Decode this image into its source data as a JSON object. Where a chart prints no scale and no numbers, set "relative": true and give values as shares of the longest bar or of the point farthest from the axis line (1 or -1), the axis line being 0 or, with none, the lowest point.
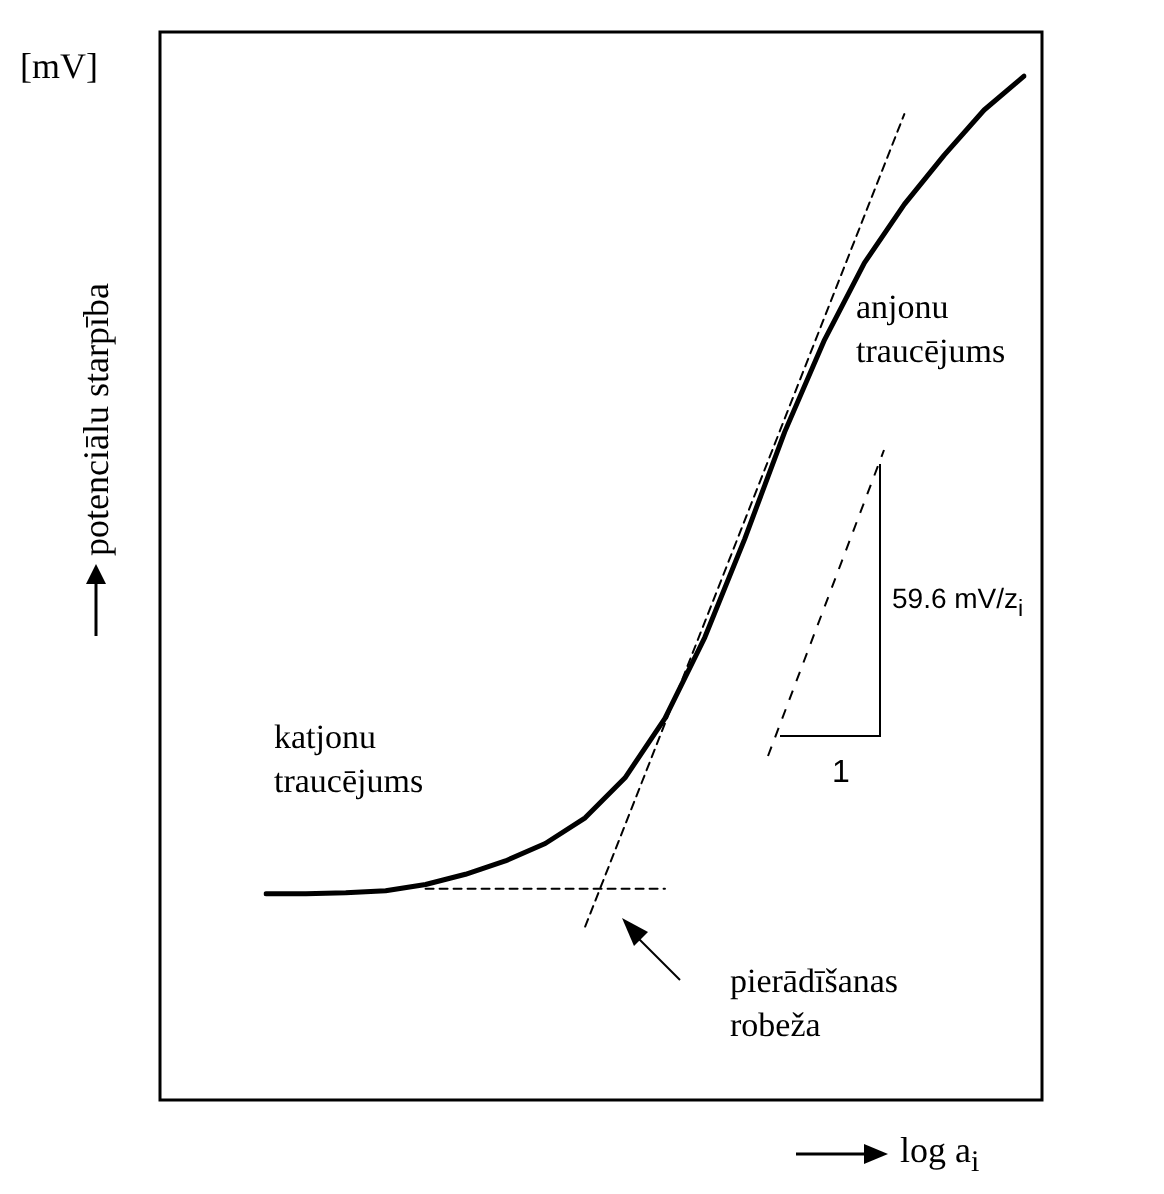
{
  "chart_data": {
    "type": "line",
    "relative": true,
    "xlabel": "log a$_{i}$",
    "ylabel": "potenciālu starpība",
    "legend": false,
    "marker": "none",
    "annotations": [
      "[mV]",
      "katjonu\ntraucējums",
      "anjonu\ntraucējums",
      "59.6 mV/z$_{i}$",
      "1",
      "pierādīšanas\nrobeža"
    ],
    "categories": [
      null,
      null,
      null,
      null,
      null,
      null,
      null,
      null,
      null,
      null,
      null,
      null,
      null,
      null,
      null,
      null,
      null,
      null,
      null,
      null
    ],
    "series": [
      {
        "color": "#000000",
        "line_style": "solid",
        "values": [
          0.203,
          0.203,
          0.204,
          0.206,
          0.212,
          0.222,
          0.235,
          0.252,
          0.277,
          0.316,
          0.374,
          0.453,
          0.549,
          0.653,
          0.743,
          0.818,
          0.875,
          0.923,
          0.967,
          1
        ]
      },
      {
        "color": "#000000",
        "line_style": "dashed",
        "values": [
          null,
          null,
          null,
          null,
          null,
          null,
          null,
          null,
          0.171,
          0.27,
          0.369,
          0.468,
          0.567,
          0.666,
          0.765,
          0.864,
          0.963,
          null,
          null,
          null
        ]
      },
      {
        "color": "#000000",
        "line_style": "dashed",
        "values": [
          null,
          null,
          null,
          null,
          0.208,
          0.208,
          0.208,
          0.208,
          0.208,
          0.208,
          0.208,
          null,
          null,
          null,
          null,
          null,
          null,
          null,
          null,
          null
        ]
      }
    ]
  }
}
